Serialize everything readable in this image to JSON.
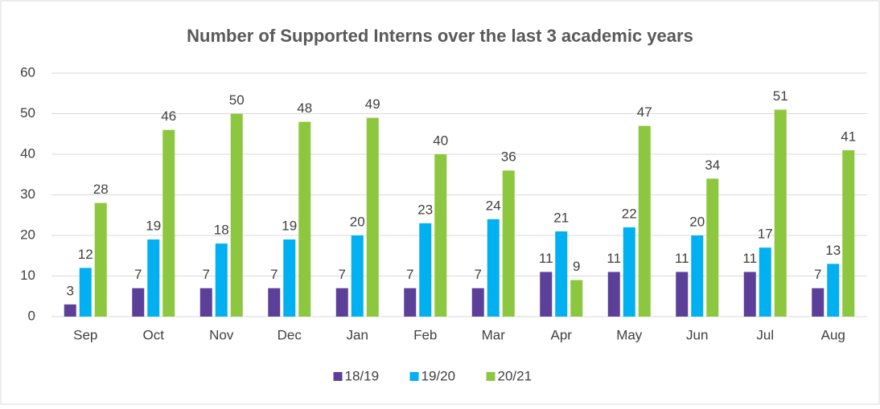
{
  "chart_data": {
    "type": "bar",
    "title": "Number of Supported Interns over the last 3 academic years",
    "categories": [
      "Sep",
      "Oct",
      "Nov",
      "Dec",
      "Jan",
      "Feb",
      "Mar",
      "Apr",
      "May",
      "Jun",
      "Jul",
      "Aug"
    ],
    "series": [
      {
        "name": "18/19",
        "color": "#5b3f99",
        "values": [
          3,
          7,
          7,
          7,
          7,
          7,
          7,
          11,
          11,
          11,
          11,
          7
        ]
      },
      {
        "name": "19/20",
        "color": "#00b0f0",
        "values": [
          12,
          19,
          18,
          19,
          20,
          23,
          24,
          21,
          22,
          20,
          17,
          13
        ]
      },
      {
        "name": "20/21",
        "color": "#8dc63f",
        "values": [
          28,
          46,
          50,
          48,
          49,
          40,
          36,
          9,
          47,
          34,
          51,
          41
        ]
      }
    ],
    "ylim": [
      0,
      60
    ],
    "yticks": [
      0,
      10,
      20,
      30,
      40,
      50,
      60
    ],
    "grid": true,
    "legend": "bottom"
  }
}
